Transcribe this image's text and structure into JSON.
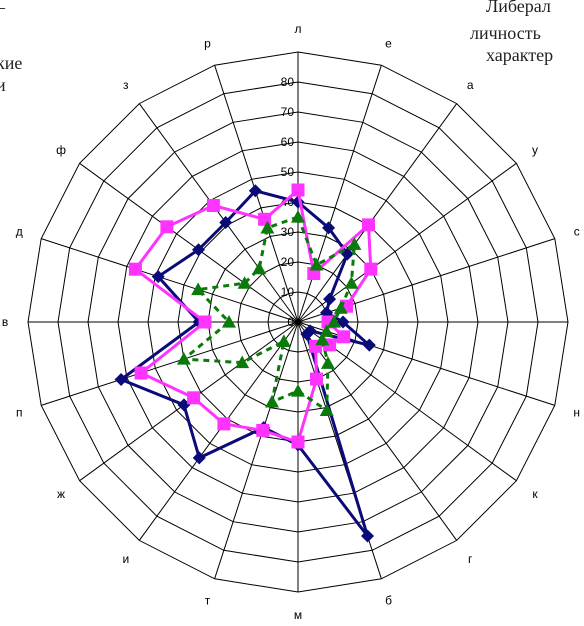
{
  "background_text": {
    "left_line1": "–",
    "left_line2": "кие",
    "left_line3": "и",
    "right_line1": "Либерал",
    "right_line2": "личность",
    "right_line3": "характер"
  },
  "chart_data": {
    "type": "radar",
    "title": "",
    "categories": [
      "л",
      "е",
      "а",
      "у",
      "с",
      "о",
      "н",
      "к",
      "г",
      "б",
      "м",
      "т",
      "и",
      "ж",
      "п",
      "в",
      "д",
      "ф",
      "з",
      "р"
    ],
    "rlim": [
      0,
      80
    ],
    "rticks": [
      0,
      10,
      20,
      30,
      40,
      50,
      60,
      70,
      80
    ],
    "rings": [
      10,
      20,
      30,
      40,
      50,
      60,
      70,
      80,
      90
    ],
    "grid": true,
    "series": [
      {
        "color": "#0a0a78",
        "marker": "diamond",
        "line": "solid",
        "values": [
          40,
          33,
          28,
          13,
          10,
          15,
          25,
          5,
          5,
          75,
          41,
          37,
          56,
          47,
          62,
          33,
          49,
          41,
          41,
          46
        ]
      },
      {
        "color": "#ff33ff",
        "marker": "square",
        "line": "solid",
        "values": [
          44,
          17,
          40,
          30,
          17,
          10,
          16,
          13,
          10,
          20,
          40,
          38,
          42,
          43,
          55,
          31,
          57,
          54,
          48,
          36
        ]
      },
      {
        "color": "#0a7a0a",
        "marker": "triangle",
        "line": "dashed",
        "values": [
          35,
          20,
          32,
          22,
          15,
          12,
          10,
          10,
          17,
          31,
          23,
          28,
          8,
          23,
          40,
          23,
          35,
          22,
          22,
          33
        ]
      }
    ]
  }
}
